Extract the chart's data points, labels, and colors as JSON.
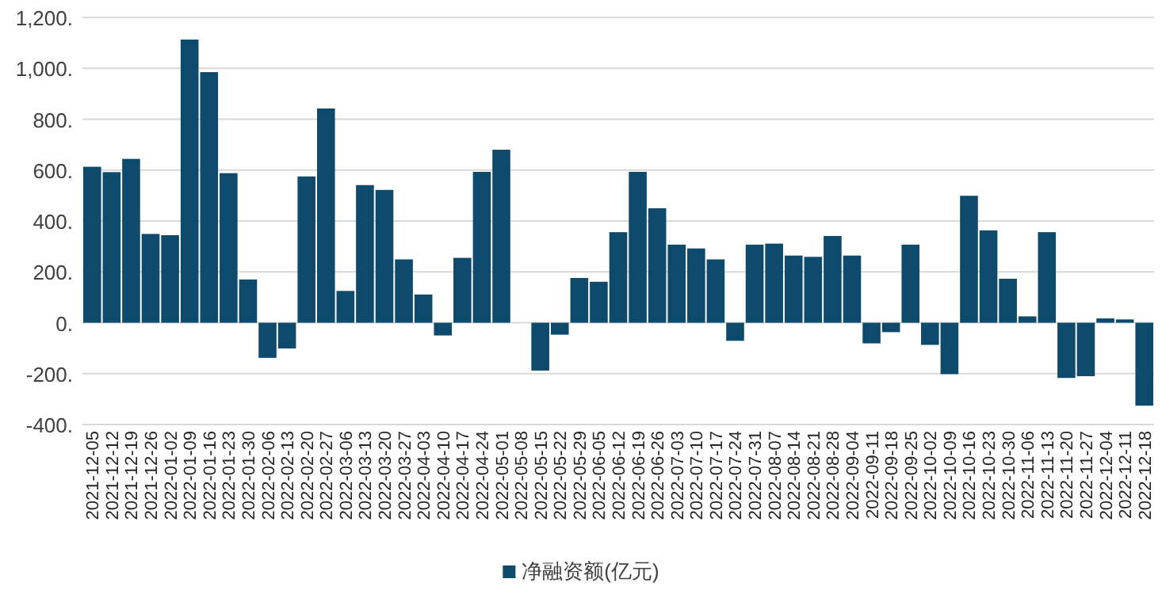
{
  "chart_data": {
    "type": "bar",
    "categories": [
      "2021-12-05",
      "2021-12-12",
      "2021-12-19",
      "2021-12-26",
      "2022-01-02",
      "2022-01-09",
      "2022-01-16",
      "2022-01-23",
      "2022-01-30",
      "2022-02-06",
      "2022-02-13",
      "2022-02-20",
      "2022-02-27",
      "2022-03-06",
      "2022-03-13",
      "2022-03-20",
      "2022-03-27",
      "2022-04-03",
      "2022-04-10",
      "2022-04-17",
      "2022-04-24",
      "2022-05-01",
      "2022-05-08",
      "2022-05-15",
      "2022-05-22",
      "2022-05-29",
      "2022-06-05",
      "2022-06-12",
      "2022-06-19",
      "2022-06-26",
      "2022-07-03",
      "2022-07-10",
      "2022-07-17",
      "2022-07-24",
      "2022-07-31",
      "2022-08-07",
      "2022-08-14",
      "2022-08-21",
      "2022-08-28",
      "2022-09-04",
      "2022-09-11",
      "2022-09-18",
      "2022-09-25",
      "2022-10-02",
      "2022-10-09",
      "2022-10-16",
      "2022-10-23",
      "2022-10-30",
      "2022-11-06",
      "2022-11-13",
      "2022-11-20",
      "2022-11-27",
      "2022-12-04",
      "2022-12-11",
      "2022-12-18"
    ],
    "series": [
      {
        "name": "净融资额(亿元)",
        "color": "#0e4a6b",
        "values": [
          613,
          592,
          644,
          349,
          344,
          1113,
          985,
          588,
          170,
          -138,
          -101,
          575,
          842,
          125,
          541,
          522,
          249,
          111,
          -50,
          255,
          593,
          680,
          0,
          -188,
          -47,
          176,
          161,
          356,
          593,
          450,
          307,
          292,
          249,
          -71,
          307,
          311,
          264,
          259,
          341,
          264,
          -81,
          -37,
          307,
          -87,
          -202,
          499,
          363,
          173,
          25,
          356,
          -217,
          -210,
          17,
          13,
          -326
        ]
      }
    ],
    "ylim": [
      -400,
      1200
    ],
    "yticks": [
      {
        "value": -400,
        "label": "-400."
      },
      {
        "value": -200,
        "label": "-200."
      },
      {
        "value": 0,
        "label": "0."
      },
      {
        "value": 200,
        "label": "200."
      },
      {
        "value": 400,
        "label": "400."
      },
      {
        "value": 600,
        "label": "600."
      },
      {
        "value": 800,
        "label": "800."
      },
      {
        "value": 1000,
        "label": "1,000."
      },
      {
        "value": 1200,
        "label": "1,200."
      }
    ],
    "grid": "y",
    "legend": "bottom"
  }
}
